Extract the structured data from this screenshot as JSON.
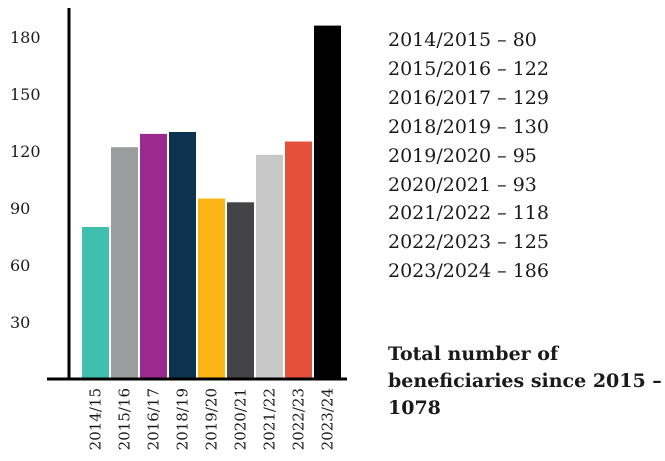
{
  "chart_data": {
    "type": "bar",
    "categories": [
      "2014/15",
      "2015/16",
      "2016/17",
      "2018/19",
      "2019/20",
      "2020/21",
      "2021/22",
      "2022/23",
      "2023/24"
    ],
    "values": [
      80,
      122,
      129,
      130,
      95,
      93,
      118,
      125,
      186
    ],
    "colors": [
      "#3fbfad",
      "#9b9c9e",
      "#9b2a8e",
      "#0d3350",
      "#fbb616",
      "#444446",
      "#c8c8c8",
      "#e4503a",
      "#000000"
    ],
    "yticks": [
      30,
      60,
      90,
      120,
      150,
      180
    ],
    "ylim": [
      0,
      190
    ],
    "title": "",
    "xlabel": "",
    "ylabel": ""
  },
  "legend": [
    "2014/2015 – 80",
    "2015/2016 – 122",
    "2016/2017 – 129",
    "2018/2019 – 130",
    "2019/2020 – 95",
    "2020/2021 – 93",
    "2021/2022 – 118",
    "2022/2023 – 125",
    "2023/2024 – 186"
  ],
  "total_text": "Total number of beneficiaries since 2015 – 1078"
}
